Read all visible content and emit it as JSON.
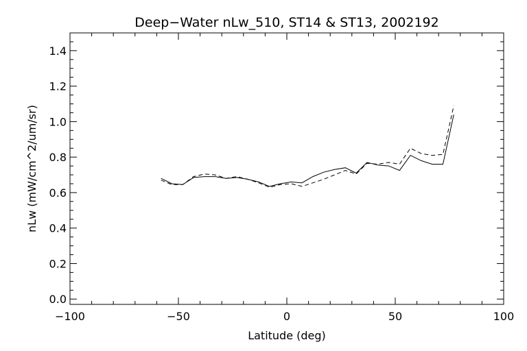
{
  "chart_data": {
    "type": "line",
    "title": "Deep−Water nLw_510, ST14 & ST13, 2002192",
    "xlabel": "Latitude (deg)",
    "ylabel": "nLw (mW/cm^2/um/sr)",
    "xlim": [
      -100,
      100
    ],
    "ylim": [
      -0.03,
      1.5
    ],
    "x_ticks": [
      -100,
      -50,
      0,
      50,
      100
    ],
    "x_tick_labels": [
      "−100",
      "−50",
      "0",
      "50",
      "100"
    ],
    "y_ticks": [
      0.0,
      0.2,
      0.4,
      0.6,
      0.8,
      1.0,
      1.2,
      1.4
    ],
    "y_tick_labels": [
      "0.0",
      "0.2",
      "0.4",
      "0.6",
      "0.8",
      "1.0",
      "1.2",
      "1.4"
    ],
    "grid": false,
    "series": [
      {
        "style": "solid",
        "x": [
          -58,
          -53,
          -48,
          -43,
          -38,
          -33,
          -28,
          -23,
          -18,
          -13,
          -8,
          -3,
          2,
          7,
          12,
          17,
          22,
          27,
          32,
          37,
          42,
          47,
          52,
          57,
          62,
          67,
          72,
          77
        ],
        "y": [
          0.68,
          0.65,
          0.645,
          0.685,
          0.69,
          0.69,
          0.68,
          0.685,
          0.675,
          0.66,
          0.635,
          0.65,
          0.66,
          0.655,
          0.69,
          0.715,
          0.73,
          0.74,
          0.71,
          0.77,
          0.755,
          0.75,
          0.725,
          0.81,
          0.78,
          0.76,
          0.76,
          1.04
        ]
      },
      {
        "style": "dashed",
        "x": [
          -58,
          -53,
          -48,
          -43,
          -38,
          -33,
          -28,
          -23,
          -18,
          -13,
          -8,
          -3,
          2,
          7,
          12,
          17,
          22,
          27,
          32,
          37,
          42,
          47,
          52,
          57,
          62,
          67,
          72,
          77
        ],
        "y": [
          0.67,
          0.645,
          0.645,
          0.69,
          0.705,
          0.7,
          0.68,
          0.69,
          0.675,
          0.655,
          0.63,
          0.645,
          0.65,
          0.635,
          0.655,
          0.675,
          0.7,
          0.725,
          0.705,
          0.765,
          0.76,
          0.77,
          0.76,
          0.85,
          0.82,
          0.81,
          0.815,
          1.09
        ]
      }
    ]
  }
}
